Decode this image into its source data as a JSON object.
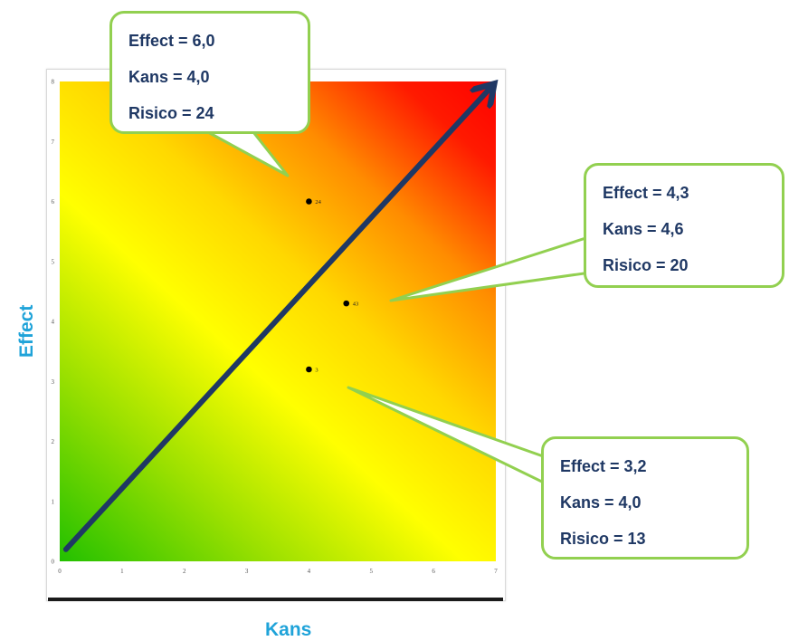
{
  "chart_data": {
    "type": "scatter",
    "xlabel": "Kans",
    "ylabel": "Effect",
    "xlim": [
      0,
      7
    ],
    "ylim": [
      0,
      8
    ],
    "x_ticks": [
      "0",
      "1",
      "2",
      "3",
      "4",
      "5",
      "6",
      "7"
    ],
    "y_ticks": [
      "0",
      "1",
      "2",
      "3",
      "4",
      "5",
      "6",
      "7",
      "8"
    ],
    "background": "risk gradient green (bottom-left) to yellow to red (top-right)",
    "colors": {
      "green": "#22c000",
      "yellow": "#ffff00",
      "orange": "#ff9a00",
      "red": "#ff0000",
      "arrow": "#1f3864",
      "callout_border": "#92d050",
      "axis_title": "#1fa3d9",
      "callout_text": "#1f3864"
    },
    "arrow": {
      "from": [
        0.1,
        0.2
      ],
      "to": [
        7,
        8
      ]
    },
    "points": [
      {
        "x": 4.0,
        "y": 6.0,
        "label": "24"
      },
      {
        "x": 4.6,
        "y": 4.3,
        "label": "43"
      },
      {
        "x": 4.0,
        "y": 3.2,
        "label": "3"
      }
    ],
    "callouts": [
      {
        "lines": [
          "Effect = 6,0",
          "Kans = 4,0",
          "Risico = 24"
        ]
      },
      {
        "lines": [
          "Effect = 4,3",
          "Kans = 4,6",
          "Risico = 20"
        ]
      },
      {
        "lines": [
          "Effect = 3,2",
          "Kans = 4,0",
          "Risico = 13"
        ]
      }
    ]
  }
}
